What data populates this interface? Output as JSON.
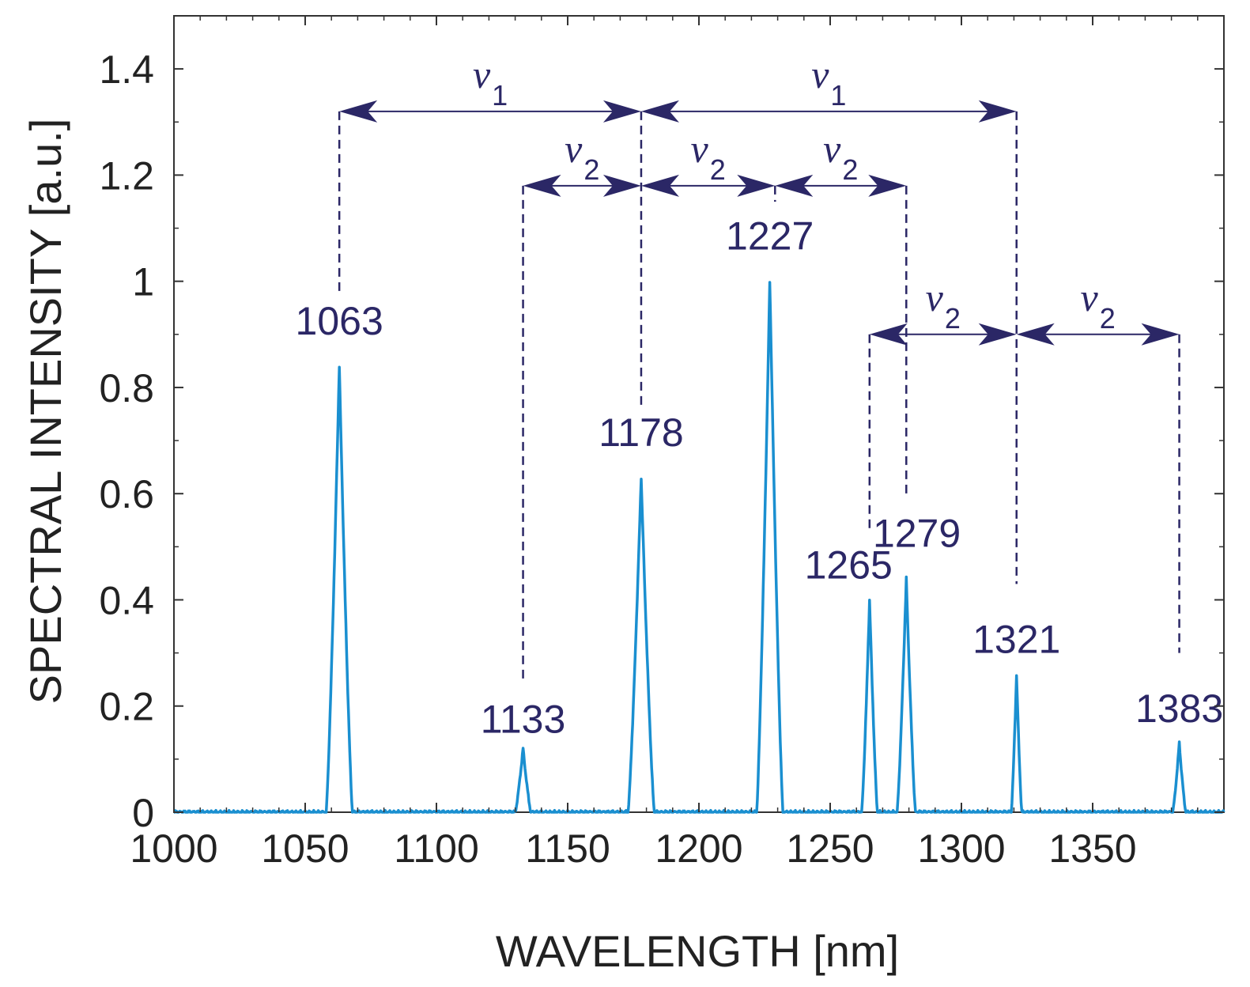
{
  "chart_data": {
    "type": "line",
    "xlabel": "WAVELENGTH [nm]",
    "ylabel": "SPECTRAL INTENSITY [a.u.]",
    "xlim": [
      1000,
      1400
    ],
    "ylim": [
      0,
      1.5
    ],
    "x_ticks": [
      1000,
      1050,
      1100,
      1150,
      1200,
      1250,
      1300,
      1350
    ],
    "x_tick_labels": [
      "1000",
      "1050",
      "1100",
      "1150",
      "1200",
      "1250",
      "1300",
      "1350"
    ],
    "y_ticks": [
      0,
      0.2,
      0.4,
      0.6,
      0.8,
      1,
      1.2,
      1.4
    ],
    "y_tick_labels": [
      "0",
      "0.2",
      "0.4",
      "0.6",
      "0.8",
      "1",
      "1.2",
      "1.4"
    ],
    "grid": false,
    "series": [
      {
        "color": "#1a8fd0",
        "peaks": [
          {
            "x": 1063,
            "y": 0.84,
            "width": 5
          },
          {
            "x": 1133,
            "y": 0.12,
            "width": 3
          },
          {
            "x": 1178,
            "y": 0.63,
            "width": 5
          },
          {
            "x": 1227,
            "y": 1.0,
            "width": 5
          },
          {
            "x": 1265,
            "y": 0.4,
            "width": 3
          },
          {
            "x": 1279,
            "y": 0.44,
            "width": 3.5
          },
          {
            "x": 1321,
            "y": 0.26,
            "width": 2
          },
          {
            "x": 1383,
            "y": 0.13,
            "width": 2.5
          }
        ]
      }
    ],
    "peak_labels": [
      {
        "text": "1063",
        "x": 1063,
        "y": 0.9
      },
      {
        "text": "1133",
        "x": 1133,
        "y": 0.15
      },
      {
        "text": "1178",
        "x": 1178,
        "y": 0.69
      },
      {
        "text": "1227",
        "x": 1227,
        "y": 1.06
      },
      {
        "text": "1265",
        "x": 1257,
        "y": 0.44
      },
      {
        "text": "1279",
        "x": 1283,
        "y": 0.5
      },
      {
        "text": "1321",
        "x": 1321,
        "y": 0.3
      },
      {
        "text": "1383",
        "x": 1383,
        "y": 0.17
      }
    ],
    "guide_lines": [
      {
        "x": 1063,
        "y_from": 1.32,
        "y_to": 0.98
      },
      {
        "x": 1133,
        "y_from": 1.18,
        "y_to": 0.25
      },
      {
        "x": 1178,
        "y_from": 1.32,
        "y_to": 0.76
      },
      {
        "x": 1229,
        "y_from": 1.18,
        "y_to": 1.15
      },
      {
        "x": 1265,
        "y_from": 0.9,
        "y_to": 0.53
      },
      {
        "x": 1279,
        "y_from": 1.18,
        "y_to": 0.6
      },
      {
        "x": 1321,
        "y_from": 1.32,
        "y_to": 0.43
      },
      {
        "x": 1383,
        "y_from": 0.9,
        "y_to": 0.3
      }
    ],
    "arrows": [
      {
        "x1": 1063,
        "x2": 1178,
        "y": 1.32,
        "label": "ν",
        "sub": "1"
      },
      {
        "x1": 1178,
        "x2": 1321,
        "y": 1.32,
        "label": "ν",
        "sub": "1"
      },
      {
        "x1": 1133,
        "x2": 1178,
        "y": 1.18,
        "label": "ν",
        "sub": "2"
      },
      {
        "x1": 1178,
        "x2": 1229,
        "y": 1.18,
        "label": "ν",
        "sub": "2"
      },
      {
        "x1": 1229,
        "x2": 1279,
        "y": 1.18,
        "label": "ν",
        "sub": "2"
      },
      {
        "x1": 1265,
        "x2": 1321,
        "y": 0.9,
        "label": "ν",
        "sub": "2"
      },
      {
        "x1": 1321,
        "x2": 1383,
        "y": 0.9,
        "label": "ν",
        "sub": "2"
      }
    ],
    "annotation_color": "#2b2766",
    "axis_color": "#333333"
  }
}
